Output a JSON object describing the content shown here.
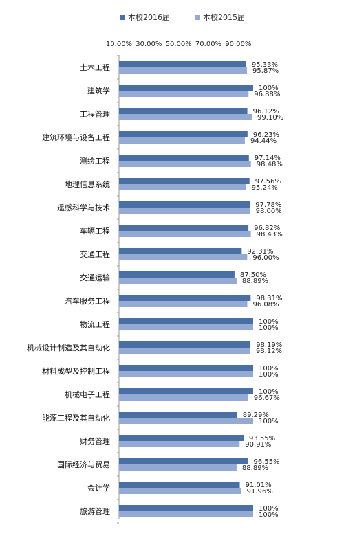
{
  "chart_data": {
    "type": "bar",
    "orientation": "horizontal",
    "legend_position": "top",
    "grid": false,
    "xlim": [
      10,
      100
    ],
    "x_tick_labels": [
      "10.00%",
      "30.00%",
      "50.00%",
      "70.00%",
      "90.00%"
    ],
    "x_ticks": [
      10,
      30,
      50,
      70,
      90
    ],
    "categories": [
      "土木工程",
      "建筑学",
      "工程管理",
      "建筑环境与设备工程",
      "测绘工程",
      "地理信息系统",
      "遥感科学与技术",
      "车辆工程",
      "交通工程",
      "交通运输",
      "汽车服务工程",
      "物流工程",
      "机械设计制造及其自动化",
      "材料成型及控制工程",
      "机械电子工程",
      "能源工程及其自动化",
      "财务管理",
      "国际经济与贸易",
      "会计学",
      "旅游管理"
    ],
    "series": [
      {
        "name": "本校2016届",
        "color": "#4a6fa5",
        "values": [
          95.33,
          100,
          96.12,
          96.23,
          97.14,
          97.56,
          97.78,
          96.82,
          92.31,
          87.5,
          98.31,
          100,
          98.19,
          100,
          100,
          89.29,
          93.55,
          96.55,
          91.01,
          100
        ],
        "labels": [
          "95.33%",
          "100%",
          "96.12%",
          "96.23%",
          "97.14%",
          "97.56%",
          "97.78%",
          "96.82%",
          "92.31%",
          "87.50%",
          "98.31%",
          "100%",
          "98.19%",
          "100%",
          "100%",
          "89.29%",
          "93.55%",
          "96.55%",
          "91.01%",
          "100%"
        ]
      },
      {
        "name": "本校2015届",
        "color": "#94aad2",
        "values": [
          95.87,
          96.88,
          99.1,
          94.44,
          98.48,
          95.24,
          98.0,
          98.43,
          96.0,
          88.89,
          96.08,
          100,
          98.12,
          100,
          96.67,
          100,
          90.91,
          88.89,
          91.96,
          100
        ],
        "labels": [
          "95.87%",
          "96.88%",
          "99.10%",
          "94.44%",
          "98.48%",
          "95.24%",
          "98.00%",
          "98.43%",
          "96.00%",
          "88.89%",
          "96.08%",
          "100%",
          "98.12%",
          "100%",
          "96.67%",
          "100%",
          "90.91%",
          "88.89%",
          "91.96%",
          "100%"
        ]
      }
    ]
  }
}
